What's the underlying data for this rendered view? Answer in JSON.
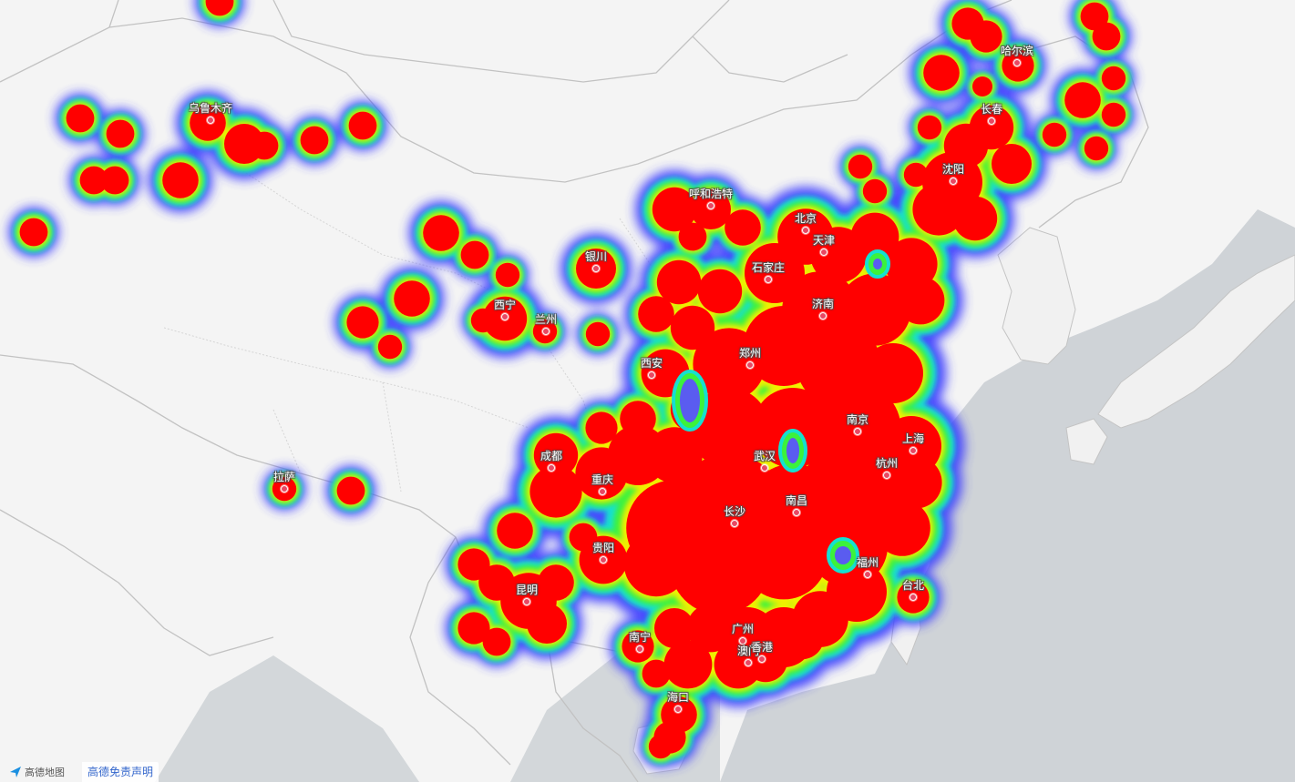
{
  "map": {
    "provider_logo_text": "高德地图",
    "disclaimer_link": "高德免责声明",
    "heat_colors": {
      "outer": "#3b3bff",
      "mid": "#16e0d0",
      "green": "#3cf23c",
      "yellow": "#f0f000",
      "hot": "#ff0000"
    },
    "base_colors": {
      "land": "#f4f4f4",
      "sea": "#cdd2d6",
      "border": "#bfbfbf"
    },
    "cities": [
      {
        "id": "urumqi",
        "label": "乌鲁木齐"
      },
      {
        "id": "harbin",
        "label": "哈尔滨"
      },
      {
        "id": "changchun",
        "label": "长春"
      },
      {
        "id": "shenyang",
        "label": "沈阳"
      },
      {
        "id": "hohhot",
        "label": "呼和浩特"
      },
      {
        "id": "beijing",
        "label": "北京"
      },
      {
        "id": "tianjin",
        "label": "天津"
      },
      {
        "id": "shijiazhuang",
        "label": "石家庄"
      },
      {
        "id": "yinchuan",
        "label": "银川"
      },
      {
        "id": "jinan",
        "label": "济南"
      },
      {
        "id": "xining",
        "label": "西宁"
      },
      {
        "id": "lanzhou",
        "label": "兰州"
      },
      {
        "id": "zhengzhou",
        "label": "郑州"
      },
      {
        "id": "xian",
        "label": "西安"
      },
      {
        "id": "nanjing",
        "label": "南京"
      },
      {
        "id": "shanghai",
        "label": "上海"
      },
      {
        "id": "wuhan",
        "label": "武汉"
      },
      {
        "id": "hangzhou",
        "label": "杭州"
      },
      {
        "id": "chengdu",
        "label": "成都"
      },
      {
        "id": "lhasa",
        "label": "拉萨"
      },
      {
        "id": "chongqing",
        "label": "重庆"
      },
      {
        "id": "nanchang",
        "label": "南昌"
      },
      {
        "id": "changsha",
        "label": "长沙"
      },
      {
        "id": "guiyang",
        "label": "贵阳"
      },
      {
        "id": "fuzhou",
        "label": "福州"
      },
      {
        "id": "kunming",
        "label": "昆明"
      },
      {
        "id": "taipei",
        "label": "台北"
      },
      {
        "id": "guangzhou",
        "label": "广州"
      },
      {
        "id": "nanning",
        "label": "南宁"
      },
      {
        "id": "macau",
        "label": "澳门"
      },
      {
        "id": "hongkong",
        "label": "香港"
      },
      {
        "id": "haikou",
        "label": "海口"
      }
    ]
  }
}
